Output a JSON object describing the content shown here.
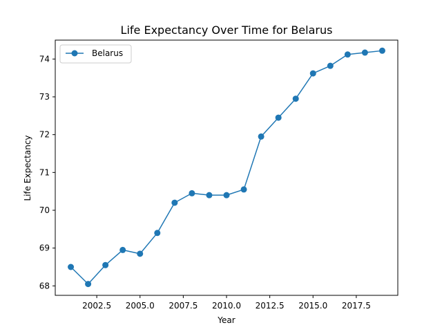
{
  "chart_data": {
    "type": "line",
    "title": "Life Expectancy Over Time for Belarus",
    "xlabel": "Year",
    "ylabel": "Life Expectancy",
    "xlim": [
      2000.1,
      2019.9
    ],
    "ylim": [
      67.75,
      74.5
    ],
    "xticks": [
      2002.5,
      2005.0,
      2007.5,
      2010.0,
      2012.5,
      2015.0,
      2017.5
    ],
    "xtick_labels": [
      "2002.5",
      "2005.0",
      "2007.5",
      "2010.0",
      "2012.5",
      "2015.0",
      "2017.5"
    ],
    "yticks": [
      68,
      69,
      70,
      71,
      72,
      73,
      74
    ],
    "ytick_labels": [
      "68",
      "69",
      "70",
      "71",
      "72",
      "73",
      "74"
    ],
    "grid": false,
    "legend_position": "top-left",
    "series": [
      {
        "name": "Belarus",
        "color": "#1f77b4",
        "marker": "circle",
        "x": [
          2001,
          2002,
          2003,
          2004,
          2005,
          2006,
          2007,
          2008,
          2009,
          2010,
          2011,
          2012,
          2013,
          2014,
          2015,
          2016,
          2017,
          2018,
          2019
        ],
        "y": [
          68.5,
          68.05,
          68.55,
          68.95,
          68.85,
          69.4,
          70.2,
          70.45,
          70.4,
          70.4,
          70.55,
          71.95,
          72.45,
          72.95,
          73.62,
          73.82,
          74.12,
          74.17,
          74.22
        ]
      }
    ]
  }
}
